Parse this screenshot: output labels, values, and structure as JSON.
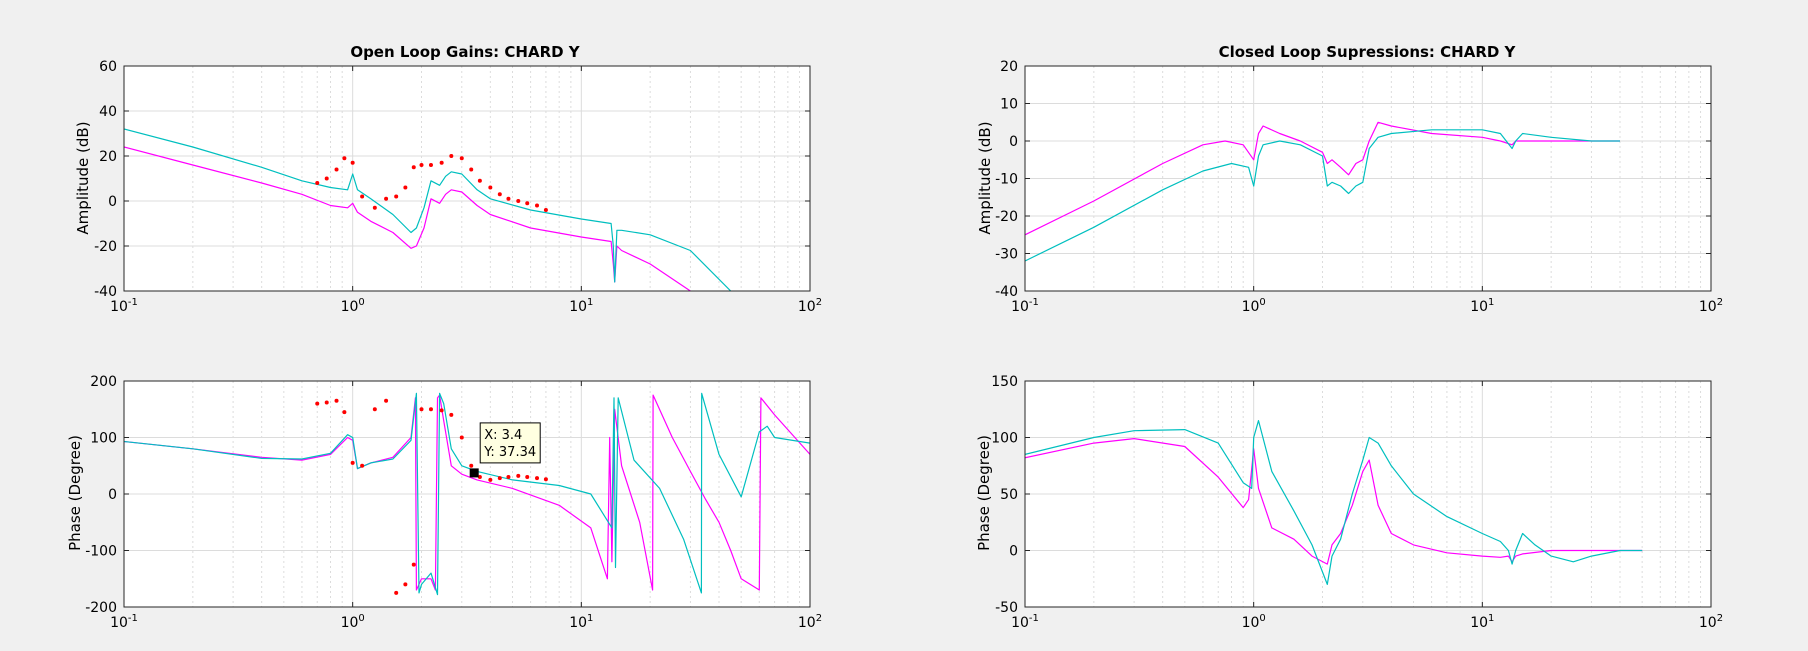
{
  "colors": {
    "series_magenta": "#ff00ff",
    "series_cyan": "#00bfbf",
    "measured_points": "#ff0000",
    "grid": "#dcdcdc",
    "figure_bg": "#f0f0f0",
    "axes_bg": "#ffffff",
    "tooltip_bg": "#ffffe1"
  },
  "chart_data": [
    {
      "type": "line",
      "id": "ol_amp",
      "title": "Open Loop Gains: CHARD Y",
      "xlabel": "",
      "ylabel": "Amplitude (dB)",
      "xscale": "log",
      "xlim": [
        0.1,
        100
      ],
      "ylim": [
        -40,
        60
      ],
      "yticks": [
        -40,
        -20,
        0,
        20,
        40,
        60
      ],
      "xticks": [
        0.1,
        1,
        10,
        100
      ],
      "xtick_labels": [
        {
          "base": "10",
          "exp": "-1"
        },
        {
          "base": "10",
          "exp": "0"
        },
        {
          "base": "10",
          "exp": "1"
        },
        {
          "base": "10",
          "exp": "2"
        }
      ],
      "grid": true,
      "series": [
        {
          "color": "magenta",
          "x": [
            0.1,
            0.2,
            0.4,
            0.6,
            0.8,
            0.95,
            1.0,
            1.05,
            1.2,
            1.5,
            1.8,
            1.9,
            2.05,
            2.2,
            2.4,
            2.55,
            2.7,
            3.0,
            3.5,
            4,
            6,
            10,
            13.5,
            13.8,
            14,
            14.3,
            15,
            20,
            30
          ],
          "y": [
            24,
            16,
            8,
            3,
            -2,
            -3,
            -1,
            -5,
            -9,
            -14,
            -21,
            -20,
            -12,
            1,
            -1,
            3,
            5,
            4,
            -2,
            -6,
            -12,
            -16,
            -18,
            -28,
            -36,
            -20,
            -22,
            -28,
            -40
          ]
        },
        {
          "color": "cyan",
          "x": [
            0.1,
            0.2,
            0.4,
            0.6,
            0.8,
            0.95,
            1.0,
            1.05,
            1.2,
            1.5,
            1.8,
            1.9,
            2.05,
            2.2,
            2.4,
            2.55,
            2.7,
            3.0,
            3.5,
            4,
            6,
            10,
            13.5,
            13.8,
            14,
            14.3,
            15,
            20,
            30,
            45
          ],
          "y": [
            32,
            24,
            15,
            9,
            6,
            5,
            12,
            5,
            1,
            -6,
            -14,
            -12,
            -3,
            9,
            7,
            11,
            13,
            12,
            5,
            1,
            -4,
            -8,
            -10,
            -20,
            -36,
            -13,
            -13,
            -15,
            -22,
            -40
          ]
        },
        {
          "color": "red",
          "marker": "dot",
          "x": [
            0.7,
            0.77,
            0.85,
            0.92,
            1.0,
            1.1,
            1.25,
            1.4,
            1.55,
            1.7,
            1.85,
            2.0,
            2.2,
            2.45,
            2.7,
            3.0,
            3.3,
            3.6,
            4.0,
            4.4,
            4.8,
            5.3,
            5.8,
            6.4,
            7.0
          ],
          "y": [
            8,
            10,
            14,
            19,
            17,
            2,
            -3,
            1,
            2,
            6,
            15,
            16,
            16,
            17,
            20,
            19,
            14,
            9,
            6,
            3,
            1,
            0,
            -1,
            -2,
            -4
          ]
        }
      ]
    },
    {
      "type": "line",
      "id": "cl_amp",
      "title": "Closed Loop Supressions: CHARD Y",
      "xlabel": "",
      "ylabel": "Amplitude (dB)",
      "xscale": "log",
      "xlim": [
        0.1,
        100
      ],
      "ylim": [
        -40,
        20
      ],
      "yticks": [
        -40,
        -30,
        -20,
        -10,
        0,
        10,
        20
      ],
      "xticks": [
        0.1,
        1,
        10,
        100
      ],
      "xtick_labels": [
        {
          "base": "10",
          "exp": "-1"
        },
        {
          "base": "10",
          "exp": "0"
        },
        {
          "base": "10",
          "exp": "1"
        },
        {
          "base": "10",
          "exp": "2"
        }
      ],
      "grid": true,
      "series": [
        {
          "color": "magenta",
          "x": [
            0.1,
            0.2,
            0.4,
            0.6,
            0.75,
            0.9,
            1.0,
            1.05,
            1.1,
            1.3,
            1.6,
            2.0,
            2.1,
            2.2,
            2.4,
            2.6,
            2.8,
            3.0,
            3.2,
            3.5,
            4,
            6,
            10,
            12,
            13.5,
            14,
            15,
            20,
            30,
            40
          ],
          "y": [
            -25,
            -16,
            -6,
            -1,
            0,
            -1,
            -5,
            2,
            4,
            2,
            0,
            -3,
            -6,
            -5,
            -7,
            -9,
            -6,
            -5,
            0,
            5,
            4,
            2,
            1,
            0,
            -1,
            0,
            0,
            0,
            0,
            0
          ]
        },
        {
          "color": "cyan",
          "x": [
            0.1,
            0.2,
            0.4,
            0.6,
            0.8,
            0.95,
            1.0,
            1.05,
            1.1,
            1.3,
            1.6,
            2.0,
            2.1,
            2.2,
            2.4,
            2.6,
            2.8,
            3.0,
            3.2,
            3.5,
            4,
            6,
            10,
            12,
            13.5,
            14,
            15,
            20,
            30,
            40
          ],
          "y": [
            -32,
            -23,
            -13,
            -8,
            -6,
            -7,
            -12,
            -4,
            -1,
            0,
            -1,
            -4,
            -12,
            -11,
            -12,
            -14,
            -12,
            -11,
            -2,
            1,
            2,
            3,
            3,
            2,
            -2,
            0,
            2,
            1,
            0,
            0
          ]
        }
      ]
    },
    {
      "type": "line",
      "id": "ol_phase",
      "title": "",
      "xlabel": "",
      "ylabel": "Phase (Degree)",
      "xscale": "log",
      "xlim": [
        0.1,
        100
      ],
      "ylim": [
        -200,
        200
      ],
      "yticks": [
        -200,
        -100,
        0,
        100,
        200
      ],
      "xticks": [
        0.1,
        1,
        10,
        100
      ],
      "xtick_labels": [
        {
          "base": "10",
          "exp": "-1"
        },
        {
          "base": "10",
          "exp": "0"
        },
        {
          "base": "10",
          "exp": "1"
        },
        {
          "base": "10",
          "exp": "2"
        }
      ],
      "grid": true,
      "series": [
        {
          "color": "magenta",
          "x": [
            0.1,
            0.2,
            0.4,
            0.6,
            0.8,
            0.95,
            1.0,
            1.05,
            1.2,
            1.5,
            1.8,
            1.88,
            1.9,
            1.95,
            2.0,
            2.2,
            2.3,
            2.35,
            2.4,
            2.5,
            2.7,
            3.0,
            3.5,
            5,
            8,
            11,
            13.0,
            13.3,
            13.6,
            14,
            15,
            18,
            20.5,
            20.6,
            25,
            30,
            35,
            40,
            45,
            50,
            60,
            61,
            70,
            100
          ],
          "y": [
            93,
            80,
            65,
            60,
            70,
            100,
            95,
            45,
            55,
            65,
            100,
            170,
            -170,
            -160,
            -150,
            -150,
            -170,
            170,
            175,
            130,
            50,
            35,
            25,
            10,
            -20,
            -60,
            -150,
            100,
            -120,
            150,
            50,
            -50,
            -170,
            175,
            100,
            40,
            -10,
            -50,
            -100,
            -150,
            -170,
            170,
            140,
            70
          ]
        },
        {
          "color": "cyan",
          "x": [
            0.1,
            0.2,
            0.4,
            0.6,
            0.8,
            0.95,
            1.0,
            1.05,
            1.2,
            1.5,
            1.8,
            1.9,
            1.95,
            2.0,
            2.2,
            2.35,
            2.4,
            2.5,
            2.7,
            3.0,
            3.5,
            5,
            8,
            11,
            13.6,
            13.9,
            14.1,
            14.5,
            17,
            22,
            28,
            33.5,
            33.6,
            40,
            50,
            60,
            65,
            70,
            100
          ],
          "y": [
            93,
            80,
            63,
            62,
            72,
            105,
            100,
            45,
            55,
            62,
            95,
            178,
            -175,
            -160,
            -140,
            -178,
            178,
            160,
            80,
            50,
            40,
            25,
            15,
            0,
            -60,
            170,
            -130,
            170,
            60,
            10,
            -80,
            -175,
            178,
            70,
            -5,
            110,
            120,
            100,
            90
          ]
        },
        {
          "color": "red",
          "marker": "dot",
          "x": [
            0.7,
            0.77,
            0.85,
            0.92,
            1.0,
            1.1,
            1.25,
            1.4,
            1.55,
            1.7,
            1.85,
            2.0,
            2.2,
            2.45,
            2.7,
            3.0,
            3.3,
            3.6,
            4.0,
            4.4,
            4.8,
            5.3,
            5.8,
            6.4,
            7.0
          ],
          "y": [
            160,
            162,
            165,
            145,
            55,
            50,
            150,
            165,
            -175,
            -160,
            -125,
            150,
            150,
            148,
            140,
            100,
            50,
            30,
            25,
            28,
            30,
            32,
            30,
            28,
            26
          ]
        }
      ],
      "annotation": {
        "x": 3.4,
        "y": 37.34,
        "label_x": "X: 3.4",
        "label_y": "Y: 37.34"
      }
    },
    {
      "type": "line",
      "id": "cl_phase",
      "title": "",
      "xlabel": "",
      "ylabel": "Phase (Degree)",
      "xscale": "log",
      "xlim": [
        0.1,
        100
      ],
      "ylim": [
        -50,
        150
      ],
      "yticks": [
        -50,
        0,
        50,
        100,
        150
      ],
      "xticks": [
        0.1,
        1,
        10,
        100
      ],
      "xtick_labels": [
        {
          "base": "10",
          "exp": "-1"
        },
        {
          "base": "10",
          "exp": "0"
        },
        {
          "base": "10",
          "exp": "1"
        },
        {
          "base": "10",
          "exp": "2"
        }
      ],
      "grid": true,
      "series": [
        {
          "color": "magenta",
          "x": [
            0.1,
            0.2,
            0.3,
            0.5,
            0.7,
            0.9,
            0.95,
            1.0,
            1.05,
            1.2,
            1.5,
            1.8,
            2.1,
            2.2,
            2.4,
            2.7,
            3.0,
            3.2,
            3.5,
            4,
            5,
            7,
            10,
            12,
            13,
            13.5,
            14,
            15,
            20,
            30,
            50
          ],
          "y": [
            82,
            95,
            99,
            92,
            65,
            38,
            45,
            90,
            55,
            20,
            10,
            -5,
            -12,
            5,
            15,
            40,
            70,
            80,
            40,
            15,
            5,
            -2,
            -5,
            -6,
            -5,
            -10,
            -5,
            -3,
            0,
            0,
            0
          ]
        },
        {
          "color": "cyan",
          "x": [
            0.1,
            0.2,
            0.3,
            0.5,
            0.7,
            0.9,
            0.98,
            1.0,
            1.05,
            1.2,
            1.5,
            1.8,
            2.1,
            2.2,
            2.4,
            2.7,
            3.0,
            3.2,
            3.5,
            4,
            5,
            7,
            10,
            12,
            13,
            13.5,
            14,
            15,
            17,
            20,
            25,
            30,
            40,
            50
          ],
          "y": [
            85,
            100,
            106,
            107,
            95,
            60,
            55,
            100,
            115,
            70,
            35,
            5,
            -30,
            -5,
            10,
            50,
            80,
            100,
            95,
            75,
            50,
            30,
            15,
            8,
            0,
            -12,
            0,
            15,
            5,
            -5,
            -10,
            -5,
            0,
            0
          ]
        }
      ]
    }
  ]
}
